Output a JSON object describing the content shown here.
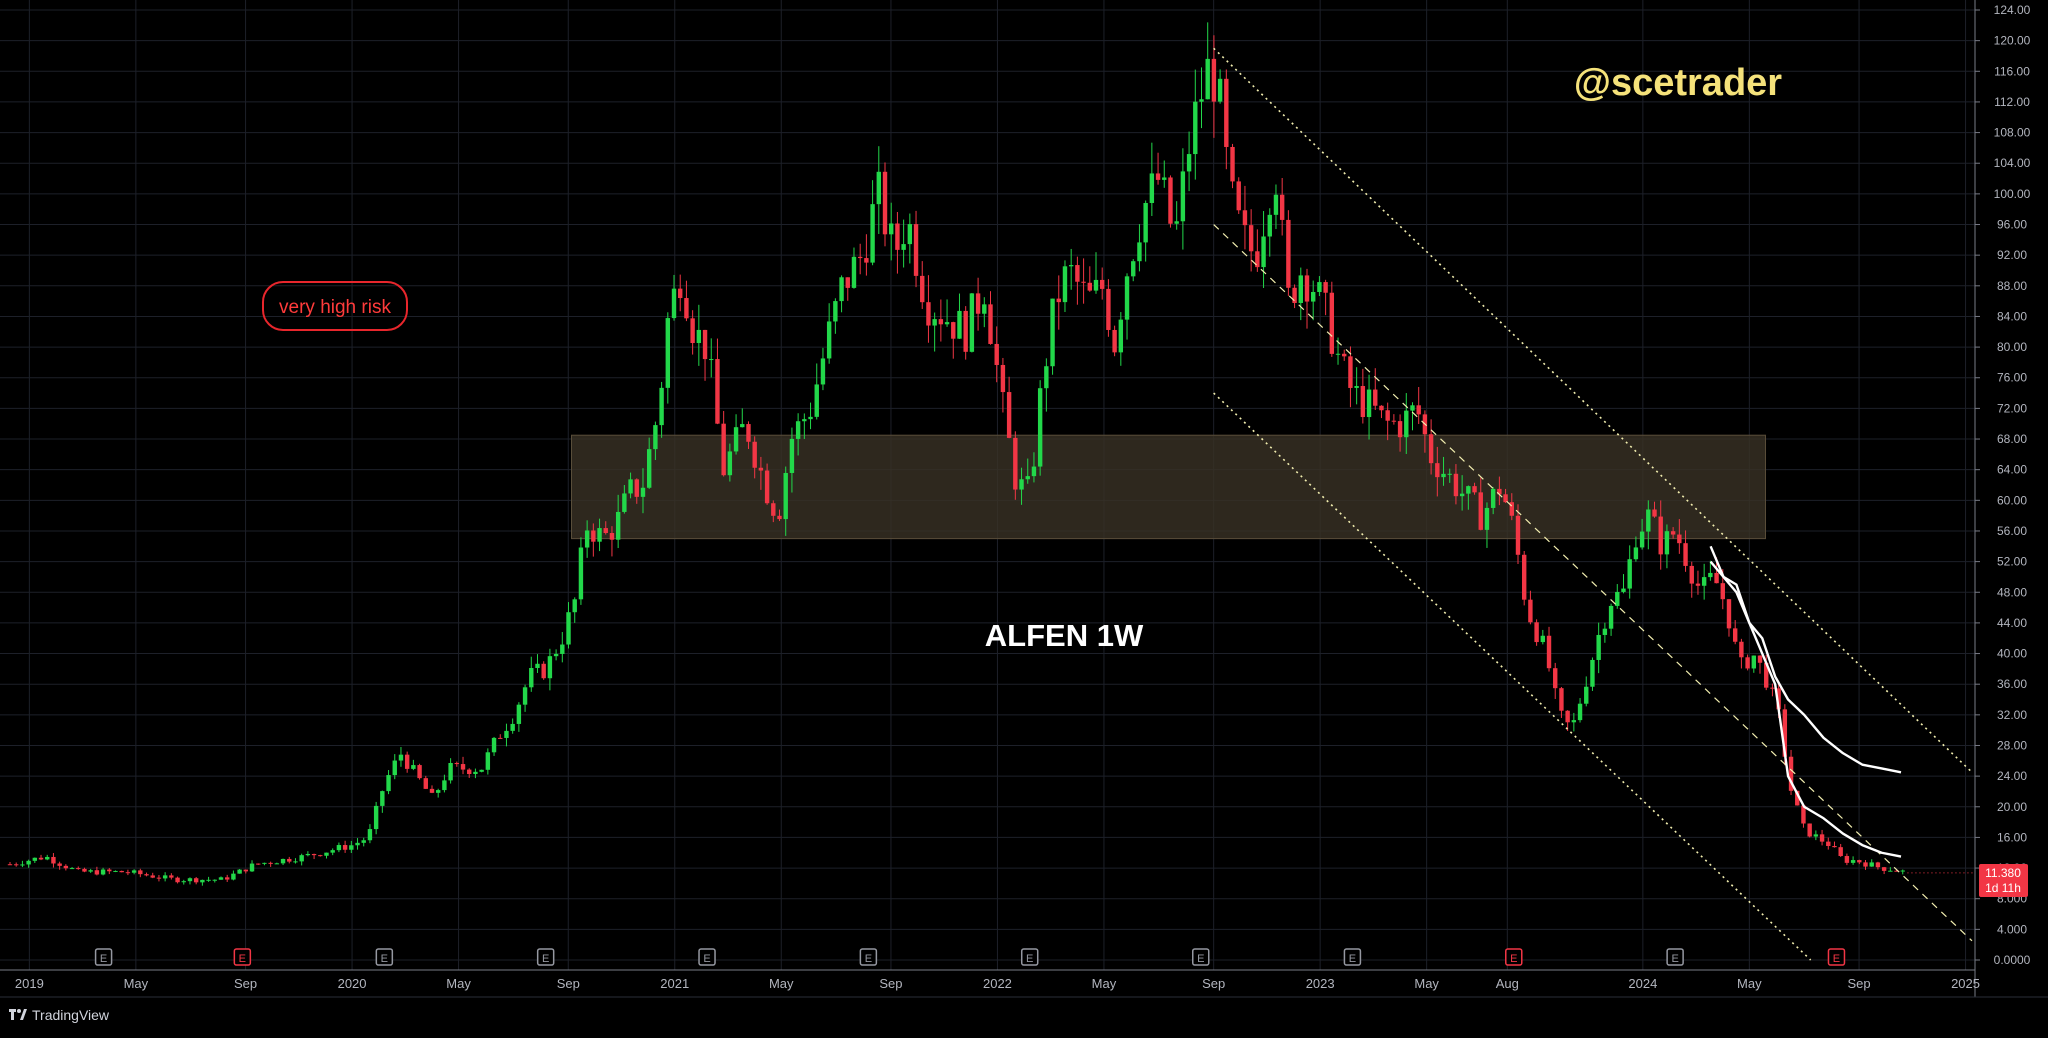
{
  "watermark": "@scetrader",
  "chart_label": "ALFEN 1W",
  "risk_badge": "very high risk",
  "brand": "TradingView",
  "price_tag": {
    "price": "11.380",
    "countdown": "1d 11h",
    "color": "#f23645"
  },
  "colors": {
    "up": "#22d84a",
    "down": "#f23645",
    "zone": "#3a3226",
    "channel": "#f3efb0",
    "background": "#000000"
  },
  "chart_data": {
    "type": "candlestick",
    "timeframe": "1W",
    "y_ticks": [
      "124.00",
      "120.00",
      "116.00",
      "112.00",
      "108.00",
      "104.00",
      "100.00",
      "96.00",
      "92.00",
      "88.00",
      "84.00",
      "80.00",
      "76.00",
      "72.00",
      "68.00",
      "64.00",
      "60.00",
      "56.00",
      "52.00",
      "48.00",
      "44.00",
      "40.00",
      "36.00",
      "32.00",
      "28.00",
      "24.00",
      "20.00",
      "16.00",
      "12.00",
      "8.000",
      "4.000",
      "0.0000"
    ],
    "x_ticks": [
      "2019",
      "May",
      "Sep",
      "2020",
      "May",
      "Sep",
      "2021",
      "May",
      "Sep",
      "2022",
      "May",
      "Sep",
      "2023",
      "May",
      "Aug",
      "2024",
      "May",
      "Sep",
      "2025"
    ],
    "x_tick_dates": [
      2019.0,
      2019.33,
      2019.67,
      2020.0,
      2020.33,
      2020.67,
      2021.0,
      2021.33,
      2021.67,
      2022.0,
      2022.33,
      2022.67,
      2023.0,
      2023.33,
      2023.58,
      2024.0,
      2024.33,
      2024.67,
      2025.0
    ],
    "ylim": [
      0,
      124
    ],
    "xlim": [
      2018.94,
      2025.02
    ],
    "grid": true,
    "price_path": [
      [
        2018.94,
        12.5
      ],
      [
        2019.05,
        13.5
      ],
      [
        2019.15,
        11.5
      ],
      [
        2019.3,
        11.5
      ],
      [
        2019.45,
        10.5
      ],
      [
        2019.6,
        10.5
      ],
      [
        2019.7,
        12.5
      ],
      [
        2019.85,
        13.5
      ],
      [
        2019.95,
        14.5
      ],
      [
        2020.0,
        15
      ],
      [
        2020.05,
        16
      ],
      [
        2020.1,
        23
      ],
      [
        2020.15,
        27
      ],
      [
        2020.2,
        24
      ],
      [
        2020.25,
        21
      ],
      [
        2020.3,
        25
      ],
      [
        2020.4,
        25
      ],
      [
        2020.45,
        29
      ],
      [
        2020.5,
        32
      ],
      [
        2020.55,
        37
      ],
      [
        2020.6,
        38
      ],
      [
        2020.65,
        42
      ],
      [
        2020.7,
        48
      ],
      [
        2020.72,
        57
      ],
      [
        2020.78,
        55
      ],
      [
        2020.82,
        57
      ],
      [
        2020.86,
        61
      ],
      [
        2020.9,
        62
      ],
      [
        2020.95,
        72
      ],
      [
        2020.98,
        84
      ],
      [
        2021.02,
        90
      ],
      [
        2021.06,
        82
      ],
      [
        2021.1,
        80
      ],
      [
        2021.15,
        64
      ],
      [
        2021.22,
        70
      ],
      [
        2021.28,
        62
      ],
      [
        2021.32,
        58
      ],
      [
        2021.36,
        68
      ],
      [
        2021.42,
        72
      ],
      [
        2021.48,
        82
      ],
      [
        2021.52,
        88
      ],
      [
        2021.58,
        92
      ],
      [
        2021.63,
        100
      ],
      [
        2021.68,
        92
      ],
      [
        2021.72,
        97
      ],
      [
        2021.78,
        86
      ],
      [
        2021.84,
        84
      ],
      [
        2021.9,
        82
      ],
      [
        2021.96,
        88
      ],
      [
        2022.02,
        71
      ],
      [
        2022.06,
        62
      ],
      [
        2022.1,
        61
      ],
      [
        2022.14,
        76
      ],
      [
        2022.18,
        86
      ],
      [
        2022.22,
        90
      ],
      [
        2022.28,
        86
      ],
      [
        2022.33,
        88
      ],
      [
        2022.36,
        80
      ],
      [
        2022.4,
        90
      ],
      [
        2022.45,
        98
      ],
      [
        2022.5,
        102
      ],
      [
        2022.55,
        94
      ],
      [
        2022.6,
        108
      ],
      [
        2022.65,
        116
      ],
      [
        2022.68,
        115
      ],
      [
        2022.72,
        100
      ],
      [
        2022.76,
        94
      ],
      [
        2022.8,
        92
      ],
      [
        2022.86,
        104
      ],
      [
        2022.9,
        86
      ],
      [
        2022.94,
        90
      ],
      [
        2022.98,
        88
      ],
      [
        2023.02,
        84
      ],
      [
        2023.06,
        78
      ],
      [
        2023.1,
        74
      ],
      [
        2023.16,
        72
      ],
      [
        2023.2,
        70
      ],
      [
        2023.25,
        70
      ],
      [
        2023.3,
        72
      ],
      [
        2023.34,
        66
      ],
      [
        2023.38,
        64
      ],
      [
        2023.42,
        62
      ],
      [
        2023.46,
        60
      ],
      [
        2023.5,
        58
      ],
      [
        2023.56,
        62
      ],
      [
        2023.6,
        56
      ],
      [
        2023.64,
        46
      ],
      [
        2023.7,
        40
      ],
      [
        2023.74,
        32
      ],
      [
        2023.78,
        30
      ],
      [
        2023.82,
        36
      ],
      [
        2023.86,
        42
      ],
      [
        2023.9,
        47
      ],
      [
        2023.94,
        48
      ],
      [
        2023.98,
        56
      ],
      [
        2024.02,
        58
      ],
      [
        2024.06,
        54
      ],
      [
        2024.1,
        56
      ],
      [
        2024.14,
        52
      ],
      [
        2024.18,
        48
      ],
      [
        2024.22,
        50
      ],
      [
        2024.26,
        46
      ],
      [
        2024.3,
        38
      ],
      [
        2024.34,
        40
      ],
      [
        2024.38,
        37
      ],
      [
        2024.42,
        32
      ],
      [
        2024.46,
        22
      ],
      [
        2024.5,
        17
      ],
      [
        2024.54,
        16
      ],
      [
        2024.58,
        15
      ],
      [
        2024.62,
        13
      ],
      [
        2024.66,
        13
      ],
      [
        2024.7,
        12.5
      ],
      [
        2024.74,
        12
      ],
      [
        2024.78,
        11.8
      ],
      [
        2024.82,
        11.38
      ]
    ],
    "resistance_zone": {
      "x_start": 2020.68,
      "x_end": 2024.38,
      "y_low": 55,
      "y_high": 68.5
    },
    "channel_upper": [
      [
        2022.67,
        119
      ],
      [
        2025.02,
        24.5
      ]
    ],
    "channel_mid": [
      [
        2022.67,
        96
      ],
      [
        2025.02,
        2.5
      ]
    ],
    "channel_lower": [
      [
        2022.67,
        74
      ],
      [
        2024.52,
        0
      ]
    ],
    "ma_fast": [
      [
        2024.21,
        54
      ],
      [
        2024.25,
        50
      ],
      [
        2024.29,
        48
      ],
      [
        2024.33,
        44
      ],
      [
        2024.37,
        40
      ],
      [
        2024.41,
        36
      ],
      [
        2024.45,
        24
      ],
      [
        2024.5,
        20
      ],
      [
        2024.56,
        18.5
      ],
      [
        2024.62,
        16.5
      ],
      [
        2024.68,
        15
      ],
      [
        2024.74,
        14
      ],
      [
        2024.8,
        13.5
      ]
    ],
    "ma_slow": [
      [
        2024.21,
        52
      ],
      [
        2024.25,
        50
      ],
      [
        2024.29,
        49
      ],
      [
        2024.33,
        44
      ],
      [
        2024.37,
        42
      ],
      [
        2024.41,
        37
      ],
      [
        2024.45,
        34
      ],
      [
        2024.5,
        32
      ],
      [
        2024.56,
        29
      ],
      [
        2024.62,
        27
      ],
      [
        2024.68,
        25.5
      ],
      [
        2024.74,
        25
      ],
      [
        2024.8,
        24.5
      ]
    ],
    "earnings_markers": [
      {
        "x": 2019.23,
        "label": "E",
        "type": "neutral"
      },
      {
        "x": 2019.66,
        "label": "E",
        "type": "negative"
      },
      {
        "x": 2020.1,
        "label": "E",
        "type": "neutral"
      },
      {
        "x": 2020.6,
        "label": "E",
        "type": "neutral"
      },
      {
        "x": 2021.1,
        "label": "E",
        "type": "neutral"
      },
      {
        "x": 2021.6,
        "label": "E",
        "type": "neutral"
      },
      {
        "x": 2022.1,
        "label": "E",
        "type": "neutral"
      },
      {
        "x": 2022.63,
        "label": "E",
        "type": "neutral"
      },
      {
        "x": 2023.1,
        "label": "E",
        "type": "neutral"
      },
      {
        "x": 2023.6,
        "label": "E",
        "type": "negative"
      },
      {
        "x": 2024.1,
        "label": "E",
        "type": "neutral"
      },
      {
        "x": 2024.6,
        "label": "E",
        "type": "negative"
      }
    ]
  }
}
